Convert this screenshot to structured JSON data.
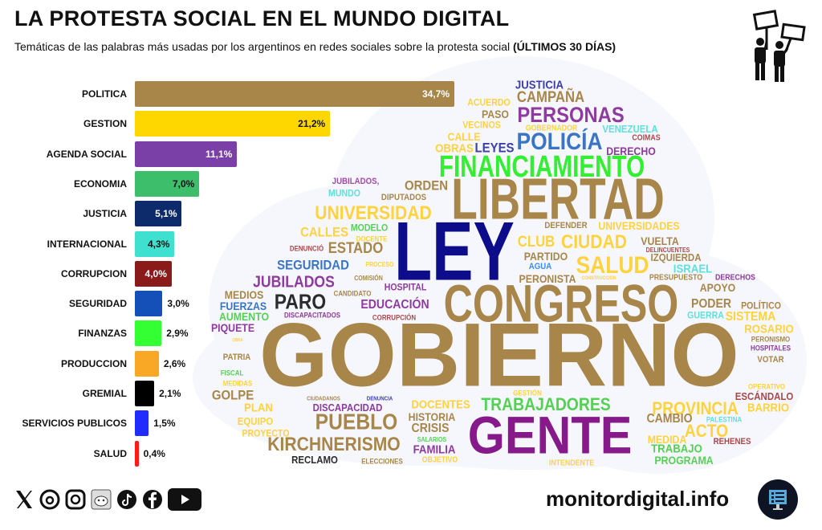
{
  "header": {
    "title": "LA PROTESTA SOCIAL EN EL MUNDO DIGITAL",
    "subtitle": "Temáticas de las palabras más usadas por los argentinos en redes sociales sobre la protesta social",
    "subtitle_bold": "(ÚLTIMOS 30 DÍAS)",
    "icon": "protest-signs-icon"
  },
  "chart_data": {
    "type": "bar",
    "orientation": "horizontal",
    "categories": [
      "POLITICA",
      "GESTION",
      "AGENDA SOCIAL",
      "ECONOMIA",
      "JUSTICIA",
      "INTERNACIONAL",
      "CORRUPCION",
      "SEGURIDAD",
      "FINANZAS",
      "PRODUCCION",
      "GREMIAL",
      "SERVICIOS PUBLICOS",
      "SALUD"
    ],
    "values": [
      34.7,
      21.2,
      11.1,
      7.0,
      5.1,
      4.3,
      4.0,
      3.0,
      2.9,
      2.6,
      2.1,
      1.5,
      0.4
    ],
    "labels": [
      "34,7%",
      "21,2%",
      "11,1%",
      "7,0%",
      "5,1%",
      "4,3%",
      "4,0%",
      "3,0%",
      "2,9%",
      "2,6%",
      "2,1%",
      "1,5%",
      "0,4%"
    ],
    "colors": [
      "#A8864A",
      "#FFD700",
      "#7B3FA8",
      "#3DBE6A",
      "#0D2A6B",
      "#40E0D0",
      "#8B1A1A",
      "#1450B8",
      "#33FF33",
      "#F9A825",
      "#000000",
      "#1F2BFF",
      "#FF1A1A"
    ],
    "unit": "%",
    "grid": false
  },
  "wordcloud": [
    {
      "text": "JUSTICIA",
      "color": "#3B3FA8"
    },
    {
      "text": "CAMPAÑA",
      "color": "#A8864A"
    },
    {
      "text": "ACUERDO",
      "color": "#FFD23F"
    },
    {
      "text": "PASO",
      "color": "#A8864A"
    },
    {
      "text": "PERSONAS",
      "color": "#8E3A9E"
    },
    {
      "text": "VECINOS",
      "color": "#FFD23F"
    },
    {
      "text": "GOBERNADOR",
      "color": "#FFD23F"
    },
    {
      "text": "VENEZUELA",
      "color": "#5FE0DC"
    },
    {
      "text": "CALLE",
      "color": "#FFD23F"
    },
    {
      "text": "POLICÍA",
      "color": "#3A75C4"
    },
    {
      "text": "COIMAS",
      "color": "#A8484A"
    },
    {
      "text": "OBRAS",
      "color": "#FFD23F"
    },
    {
      "text": "LEYES",
      "color": "#3B3FA8"
    },
    {
      "text": "DERECHO",
      "color": "#8E3A9E"
    },
    {
      "text": "FINANCIAMIENTO",
      "color": "#33EE33"
    },
    {
      "text": "LIBERTAD",
      "color": "#A8864A"
    },
    {
      "text": "JUBILADOS,",
      "color": "#A04AA8"
    },
    {
      "text": "MUNDO",
      "color": "#5FE0DC"
    },
    {
      "text": "ORDEN",
      "color": "#A8864A"
    },
    {
      "text": "DIPUTADOS",
      "color": "#A8864A"
    },
    {
      "text": "UNIVERSIDAD",
      "color": "#FFD23F"
    },
    {
      "text": "DEFENDER",
      "color": "#A8864A"
    },
    {
      "text": "UNIVERSIDADES",
      "color": "#FFD23F"
    },
    {
      "text": "LEY",
      "color": "#0D0D8C"
    },
    {
      "text": "MODELO",
      "color": "#55D055"
    },
    {
      "text": "CALLES",
      "color": "#FFD23F"
    },
    {
      "text": "DOCENTE",
      "color": "#FFD23F"
    },
    {
      "text": "DENUNCIÓ",
      "color": "#A8484A"
    },
    {
      "text": "ESTADO",
      "color": "#A8864A"
    },
    {
      "text": "CLUB",
      "color": "#FFD23F"
    },
    {
      "text": "CIUDAD",
      "color": "#FFD23F"
    },
    {
      "text": "VUELTA",
      "color": "#A8864A"
    },
    {
      "text": "DELINCUENTES",
      "color": "#A8484A"
    },
    {
      "text": "PARTIDO",
      "color": "#A8864A"
    },
    {
      "text": "IZQUIERDA",
      "color": "#A8864A"
    },
    {
      "text": "SEGURIDAD",
      "color": "#3A75C4"
    },
    {
      "text": "PROCESO",
      "color": "#FFD23F"
    },
    {
      "text": "AGUA",
      "color": "#3A8CF5"
    },
    {
      "text": "SALUD",
      "color": "#FFD23F"
    },
    {
      "text": "ISRAEL",
      "color": "#5FE0DC"
    },
    {
      "text": "COMISIÓN",
      "color": "#A8864A"
    },
    {
      "text": "PERONISTA",
      "color": "#A8864A"
    },
    {
      "text": "CONSTRUCCIÓN",
      "color": "#FFD23F"
    },
    {
      "text": "PRESUPUESTO",
      "color": "#A8864A"
    },
    {
      "text": "DERECHOS",
      "color": "#8E3A9E"
    },
    {
      "text": "JUBILADOS",
      "color": "#8E3A9E"
    },
    {
      "text": "HOSPITAL",
      "color": "#8E3A9E"
    },
    {
      "text": "CONGRESO",
      "color": "#A8864A"
    },
    {
      "text": "APOYO",
      "color": "#A8864A"
    },
    {
      "text": "MEDIOS",
      "color": "#A8864A"
    },
    {
      "text": "CANDIDATO",
      "color": "#A8864A"
    },
    {
      "text": "PARO",
      "color": "#2B2B2B"
    },
    {
      "text": "FUERZAS",
      "color": "#3A75C4"
    },
    {
      "text": "EDUCACIÓN",
      "color": "#8E3A9E"
    },
    {
      "text": "PODER",
      "color": "#A8864A"
    },
    {
      "text": "POLÍTICO",
      "color": "#A8864A"
    },
    {
      "text": "AUMENTO",
      "color": "#55D055"
    },
    {
      "text": "DISCAPACITADOS",
      "color": "#8E3A9E"
    },
    {
      "text": "CORRUPCIÓN",
      "color": "#A8484A"
    },
    {
      "text": "GUERRA",
      "color": "#5FE0DC"
    },
    {
      "text": "SISTEMA",
      "color": "#FFD23F"
    },
    {
      "text": "PIQUETE",
      "color": "#8E3A9E"
    },
    {
      "text": "ROSARIO",
      "color": "#FFD23F"
    },
    {
      "text": "GOBIERNO",
      "color": "#A8864A"
    },
    {
      "text": "OBRA",
      "color": "#FFD23F"
    },
    {
      "text": "PERONISMO",
      "color": "#A8864A"
    },
    {
      "text": "HOSPITALES",
      "color": "#8E3A9E"
    },
    {
      "text": "MEDIDAS",
      "color": "#FFD23F"
    },
    {
      "text": "PATRIA",
      "color": "#A8864A"
    },
    {
      "text": "VOTAR",
      "color": "#A8864A"
    },
    {
      "text": "FISCAL",
      "color": "#55D055"
    },
    {
      "text": "GESTIÓN",
      "color": "#FFD23F"
    },
    {
      "text": "OPERATIVO",
      "color": "#FFD23F"
    },
    {
      "text": "GOLPE",
      "color": "#A8864A"
    },
    {
      "text": "ESCÁNDALO",
      "color": "#A8484A"
    },
    {
      "text": "CIUDADANOS",
      "color": "#A8864A"
    },
    {
      "text": "DENUNCIA",
      "color": "#3B3FA8"
    },
    {
      "text": "BARRIO",
      "color": "#FFD23F"
    },
    {
      "text": "PLAN",
      "color": "#FFD23F"
    },
    {
      "text": "DISCAPACIDAD",
      "color": "#8E3A9E"
    },
    {
      "text": "DOCENTES",
      "color": "#FFD23F"
    },
    {
      "text": "TRABAJADORES",
      "color": "#55D055"
    },
    {
      "text": "PROVINCIA",
      "color": "#FFD23F"
    },
    {
      "text": "HISTORIA",
      "color": "#A8864A"
    },
    {
      "text": "EQUIPO",
      "color": "#FFD23F"
    },
    {
      "text": "PUEBLO",
      "color": "#A8864A"
    },
    {
      "text": "CAMBIO",
      "color": "#A8864A"
    },
    {
      "text": "PALESTINA",
      "color": "#5FE0DC"
    },
    {
      "text": "CRISIS",
      "color": "#A8864A"
    },
    {
      "text": "PROYECTO",
      "color": "#FFD23F"
    },
    {
      "text": "ACTO",
      "color": "#FFD23F"
    },
    {
      "text": "GENTE",
      "color": "#861A8A"
    },
    {
      "text": "MEDIDA",
      "color": "#FFD23F"
    },
    {
      "text": "SALARIOS",
      "color": "#55D055"
    },
    {
      "text": "REHENES",
      "color": "#A8484A"
    },
    {
      "text": "KIRCHNERISMO",
      "color": "#A8864A"
    },
    {
      "text": "FAMILIA",
      "color": "#8E3A9E"
    },
    {
      "text": "TRABAJO",
      "color": "#55D055"
    },
    {
      "text": "RECLAMO",
      "color": "#2B2B2B"
    },
    {
      "text": "ELECCIONES",
      "color": "#A8864A"
    },
    {
      "text": "OBJETIVO",
      "color": "#FFD23F"
    },
    {
      "text": "INTENDENTE",
      "color": "#FFD23F"
    },
    {
      "text": "PROGRAMA",
      "color": "#55D055"
    }
  ],
  "footer": {
    "social_icons": [
      "x-icon",
      "threads-icon",
      "instagram-icon",
      "reddit-icon",
      "tiktok-icon",
      "facebook-icon",
      "youtube-icon"
    ],
    "site": "monitordigital.info",
    "site_icon": "monitor-dashboard-icon"
  }
}
